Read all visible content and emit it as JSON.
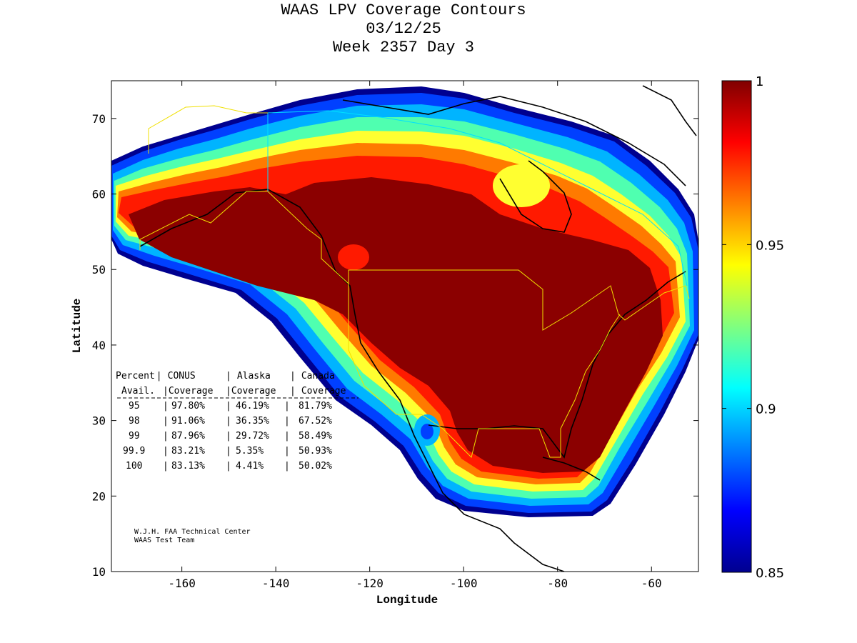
{
  "titles": [
    "WAAS LPV Coverage Contours",
    "03/12/25",
    "Week 2357 Day 3"
  ],
  "chart_data": {
    "type": "heatmap",
    "xlabel": "Longitude",
    "ylabel": "Latitude",
    "xlim": [
      -175,
      -50
    ],
    "ylim": [
      10,
      75
    ],
    "xticks": [
      -160,
      -140,
      -120,
      -100,
      -80,
      -60
    ],
    "yticks": [
      10,
      20,
      30,
      40,
      50,
      60,
      70
    ],
    "colorbar": {
      "min": 0.85,
      "max": 1,
      "ticks": [
        "0.85",
        "0.9",
        "0.95",
        "1"
      ],
      "colormap": "jet"
    },
    "grid": false
  },
  "stats_table": {
    "header1": [
      "Percent",
      "CONUS",
      "Alaska",
      "Canada"
    ],
    "header2": [
      "Avail.",
      "Coverage",
      "Coverage",
      "Coverage"
    ],
    "rows": [
      [
        "95",
        "97.80%",
        "46.19%",
        "81.79%"
      ],
      [
        "98",
        "91.06%",
        "36.35%",
        "67.52%"
      ],
      [
        "99",
        "87.96%",
        "29.72%",
        "58.49%"
      ],
      [
        "99.9",
        "83.21%",
        "5.35%",
        "50.93%"
      ],
      [
        "100",
        "83.13%",
        "4.41%",
        "50.02%"
      ]
    ]
  },
  "credit": [
    "W.J.H. FAA Technical Center",
    "WAAS Test Team"
  ]
}
